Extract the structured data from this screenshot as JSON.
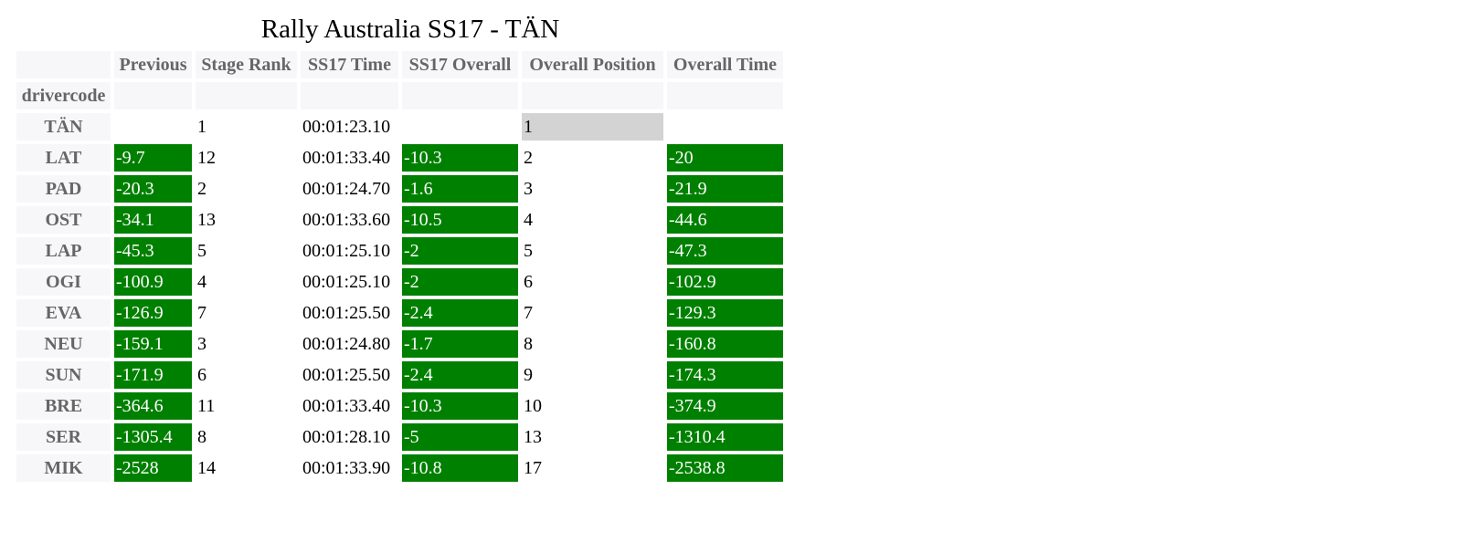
{
  "title": "Rally Australia SS17 - TÄN",
  "index_name": "drivercode",
  "columns": [
    "Previous",
    "Stage Rank",
    "SS17 Time",
    "SS17 Overall",
    "Overall Position",
    "Overall Time"
  ],
  "rows": [
    {
      "code": "TÄN",
      "previous": "",
      "stage_rank": "1",
      "ss17_time": "00:01:23.10",
      "ss17_overall": "",
      "overall_position": "1",
      "overall_time": ""
    },
    {
      "code": "LAT",
      "previous": "-9.7",
      "stage_rank": "12",
      "ss17_time": "00:01:33.40",
      "ss17_overall": "-10.3",
      "overall_position": "2",
      "overall_time": "-20"
    },
    {
      "code": "PAD",
      "previous": "-20.3",
      "stage_rank": "2",
      "ss17_time": "00:01:24.70",
      "ss17_overall": "-1.6",
      "overall_position": "3",
      "overall_time": "-21.9"
    },
    {
      "code": "OST",
      "previous": "-34.1",
      "stage_rank": "13",
      "ss17_time": "00:01:33.60",
      "ss17_overall": "-10.5",
      "overall_position": "4",
      "overall_time": "-44.6"
    },
    {
      "code": "LAP",
      "previous": "-45.3",
      "stage_rank": "5",
      "ss17_time": "00:01:25.10",
      "ss17_overall": "-2",
      "overall_position": "5",
      "overall_time": "-47.3"
    },
    {
      "code": "OGI",
      "previous": "-100.9",
      "stage_rank": "4",
      "ss17_time": "00:01:25.10",
      "ss17_overall": "-2",
      "overall_position": "6",
      "overall_time": "-102.9"
    },
    {
      "code": "EVA",
      "previous": "-126.9",
      "stage_rank": "7",
      "ss17_time": "00:01:25.50",
      "ss17_overall": "-2.4",
      "overall_position": "7",
      "overall_time": "-129.3"
    },
    {
      "code": "NEU",
      "previous": "-159.1",
      "stage_rank": "3",
      "ss17_time": "00:01:24.80",
      "ss17_overall": "-1.7",
      "overall_position": "8",
      "overall_time": "-160.8"
    },
    {
      "code": "SUN",
      "previous": "-171.9",
      "stage_rank": "6",
      "ss17_time": "00:01:25.50",
      "ss17_overall": "-2.4",
      "overall_position": "9",
      "overall_time": "-174.3"
    },
    {
      "code": "BRE",
      "previous": "-364.6",
      "stage_rank": "11",
      "ss17_time": "00:01:33.40",
      "ss17_overall": "-10.3",
      "overall_position": "10",
      "overall_time": "-374.9"
    },
    {
      "code": "SER",
      "previous": "-1305.4",
      "stage_rank": "8",
      "ss17_time": "00:01:28.10",
      "ss17_overall": "-5",
      "overall_position": "13",
      "overall_time": "-1310.4"
    },
    {
      "code": "MIK",
      "previous": "-2528",
      "stage_rank": "14",
      "ss17_time": "00:01:33.90",
      "ss17_overall": "-10.8",
      "overall_position": "17",
      "overall_time": "-2538.8"
    }
  ],
  "colors": {
    "negative_bg": "#008000",
    "negative_fg": "#ffffff",
    "highlight_bg": "#d3d3d3",
    "header_bg": "#f7f7f9",
    "header_fg": "#666666"
  }
}
